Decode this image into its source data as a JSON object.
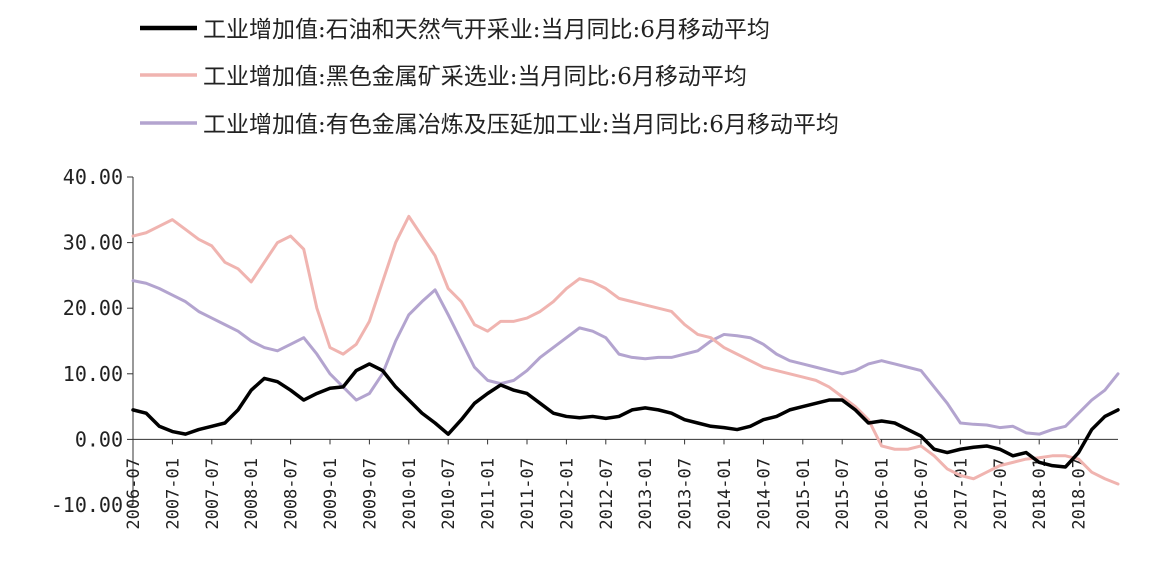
{
  "chart_data": {
    "type": "line",
    "title": "",
    "xlabel": "",
    "ylabel": "",
    "ylim": [
      -10,
      40
    ],
    "y_ticks": [
      "40.00",
      "30.00",
      "20.00",
      "10.00",
      "0.00",
      "-10.00"
    ],
    "x_ticks": [
      "2006-07",
      "2007-01",
      "2007-07",
      "2008-01",
      "2008-07",
      "2009-01",
      "2009-07",
      "2010-01",
      "2010-07",
      "2011-01",
      "2011-07",
      "2012-01",
      "2012-07",
      "2013-01",
      "2013-07",
      "2014-01",
      "2014-07",
      "2015-01",
      "2015-07",
      "2016-01",
      "2016-07",
      "2017-01",
      "2017-07",
      "2018-01",
      "2018-07"
    ],
    "grid": false,
    "legend_position": "top-left",
    "series": [
      {
        "name": "工业增加值:石油和天然气开采业:当月同比:6月移动平均",
        "color": "#000000",
        "points": [
          [
            "2006-07",
            4.5
          ],
          [
            "2006-09",
            4.0
          ],
          [
            "2006-11",
            2.0
          ],
          [
            "2007-01",
            1.2
          ],
          [
            "2007-03",
            0.8
          ],
          [
            "2007-05",
            1.5
          ],
          [
            "2007-07",
            2.0
          ],
          [
            "2007-09",
            2.5
          ],
          [
            "2007-11",
            4.5
          ],
          [
            "2008-01",
            7.5
          ],
          [
            "2008-03",
            9.3
          ],
          [
            "2008-05",
            8.8
          ],
          [
            "2008-07",
            7.5
          ],
          [
            "2008-09",
            6.0
          ],
          [
            "2008-11",
            7.0
          ],
          [
            "2009-01",
            7.8
          ],
          [
            "2009-03",
            8.0
          ],
          [
            "2009-05",
            10.5
          ],
          [
            "2009-07",
            11.5
          ],
          [
            "2009-09",
            10.5
          ],
          [
            "2009-11",
            8.0
          ],
          [
            "2010-01",
            6.0
          ],
          [
            "2010-03",
            4.0
          ],
          [
            "2010-05",
            2.5
          ],
          [
            "2010-07",
            0.8
          ],
          [
            "2010-09",
            3.0
          ],
          [
            "2010-11",
            5.5
          ],
          [
            "2011-01",
            7.0
          ],
          [
            "2011-03",
            8.3
          ],
          [
            "2011-05",
            7.5
          ],
          [
            "2011-07",
            7.0
          ],
          [
            "2011-09",
            5.5
          ],
          [
            "2011-11",
            4.0
          ],
          [
            "2012-01",
            3.5
          ],
          [
            "2012-03",
            3.3
          ],
          [
            "2012-05",
            3.5
          ],
          [
            "2012-07",
            3.2
          ],
          [
            "2012-09",
            3.5
          ],
          [
            "2012-11",
            4.5
          ],
          [
            "2013-01",
            4.8
          ],
          [
            "2013-03",
            4.5
          ],
          [
            "2013-05",
            4.0
          ],
          [
            "2013-07",
            3.0
          ],
          [
            "2013-09",
            2.5
          ],
          [
            "2013-11",
            2.0
          ],
          [
            "2014-01",
            1.8
          ],
          [
            "2014-03",
            1.5
          ],
          [
            "2014-05",
            2.0
          ],
          [
            "2014-07",
            3.0
          ],
          [
            "2014-09",
            3.5
          ],
          [
            "2014-11",
            4.5
          ],
          [
            "2015-01",
            5.0
          ],
          [
            "2015-03",
            5.5
          ],
          [
            "2015-05",
            6.0
          ],
          [
            "2015-07",
            6.0
          ],
          [
            "2015-09",
            4.5
          ],
          [
            "2015-11",
            2.5
          ],
          [
            "2016-01",
            2.8
          ],
          [
            "2016-03",
            2.5
          ],
          [
            "2016-05",
            1.5
          ],
          [
            "2016-07",
            0.5
          ],
          [
            "2016-09",
            -1.5
          ],
          [
            "2016-11",
            -2.0
          ],
          [
            "2017-01",
            -1.5
          ],
          [
            "2017-03",
            -1.2
          ],
          [
            "2017-05",
            -1.0
          ],
          [
            "2017-07",
            -1.5
          ],
          [
            "2017-09",
            -2.5
          ],
          [
            "2017-11",
            -2.0
          ],
          [
            "2018-01",
            -3.5
          ],
          [
            "2018-03",
            -4.0
          ],
          [
            "2018-05",
            -4.2
          ],
          [
            "2018-07",
            -2.0
          ],
          [
            "2018-09",
            1.5
          ],
          [
            "2018-11",
            3.5
          ],
          [
            "2019-01",
            4.5
          ]
        ]
      },
      {
        "name": "工业增加值:黑色金属矿采选业:当月同比:6月移动平均",
        "color": "#f0b4b0",
        "points": [
          [
            "2006-07",
            31.0
          ],
          [
            "2006-09",
            31.5
          ],
          [
            "2006-11",
            32.5
          ],
          [
            "2007-01",
            33.5
          ],
          [
            "2007-03",
            32.0
          ],
          [
            "2007-05",
            30.5
          ],
          [
            "2007-07",
            29.5
          ],
          [
            "2007-09",
            27.0
          ],
          [
            "2007-11",
            26.0
          ],
          [
            "2008-01",
            24.0
          ],
          [
            "2008-03",
            27.0
          ],
          [
            "2008-05",
            30.0
          ],
          [
            "2008-07",
            31.0
          ],
          [
            "2008-09",
            29.0
          ],
          [
            "2008-11",
            20.0
          ],
          [
            "2009-01",
            14.0
          ],
          [
            "2009-03",
            13.0
          ],
          [
            "2009-05",
            14.5
          ],
          [
            "2009-07",
            18.0
          ],
          [
            "2009-09",
            24.0
          ],
          [
            "2009-11",
            30.0
          ],
          [
            "2010-01",
            34.0
          ],
          [
            "2010-03",
            31.0
          ],
          [
            "2010-05",
            28.0
          ],
          [
            "2010-07",
            23.0
          ],
          [
            "2010-09",
            21.0
          ],
          [
            "2010-11",
            17.5
          ],
          [
            "2011-01",
            16.5
          ],
          [
            "2011-03",
            18.0
          ],
          [
            "2011-05",
            18.0
          ],
          [
            "2011-07",
            18.5
          ],
          [
            "2011-09",
            19.5
          ],
          [
            "2011-11",
            21.0
          ],
          [
            "2012-01",
            23.0
          ],
          [
            "2012-03",
            24.5
          ],
          [
            "2012-05",
            24.0
          ],
          [
            "2012-07",
            23.0
          ],
          [
            "2012-09",
            21.5
          ],
          [
            "2012-11",
            21.0
          ],
          [
            "2013-01",
            20.5
          ],
          [
            "2013-03",
            20.0
          ],
          [
            "2013-05",
            19.5
          ],
          [
            "2013-07",
            17.5
          ],
          [
            "2013-09",
            16.0
          ],
          [
            "2013-11",
            15.5
          ],
          [
            "2014-01",
            14.0
          ],
          [
            "2014-03",
            13.0
          ],
          [
            "2014-05",
            12.0
          ],
          [
            "2014-07",
            11.0
          ],
          [
            "2014-09",
            10.5
          ],
          [
            "2014-11",
            10.0
          ],
          [
            "2015-01",
            9.5
          ],
          [
            "2015-03",
            9.0
          ],
          [
            "2015-05",
            8.0
          ],
          [
            "2015-07",
            6.5
          ],
          [
            "2015-09",
            5.0
          ],
          [
            "2015-11",
            3.0
          ],
          [
            "2016-01",
            -1.0
          ],
          [
            "2016-03",
            -1.5
          ],
          [
            "2016-05",
            -1.5
          ],
          [
            "2016-07",
            -1.0
          ],
          [
            "2016-09",
            -2.5
          ],
          [
            "2016-11",
            -4.5
          ],
          [
            "2017-01",
            -5.5
          ],
          [
            "2017-03",
            -6.0
          ],
          [
            "2017-05",
            -5.0
          ],
          [
            "2017-07",
            -4.0
          ],
          [
            "2017-09",
            -3.5
          ],
          [
            "2017-11",
            -3.0
          ],
          [
            "2018-01",
            -2.8
          ],
          [
            "2018-03",
            -2.5
          ],
          [
            "2018-05",
            -2.5
          ],
          [
            "2018-07",
            -3.0
          ],
          [
            "2018-09",
            -5.0
          ],
          [
            "2018-11",
            -6.0
          ],
          [
            "2019-01",
            -6.8
          ]
        ]
      },
      {
        "name": "工业增加值:有色金属冶炼及压延加工业:当月同比:6月移动平均",
        "color": "#b3a4cf",
        "points": [
          [
            "2006-07",
            24.2
          ],
          [
            "2006-09",
            23.8
          ],
          [
            "2006-11",
            23.0
          ],
          [
            "2007-01",
            22.0
          ],
          [
            "2007-03",
            21.0
          ],
          [
            "2007-05",
            19.5
          ],
          [
            "2007-07",
            18.5
          ],
          [
            "2007-09",
            17.5
          ],
          [
            "2007-11",
            16.5
          ],
          [
            "2008-01",
            15.0
          ],
          [
            "2008-03",
            14.0
          ],
          [
            "2008-05",
            13.5
          ],
          [
            "2008-07",
            14.5
          ],
          [
            "2008-09",
            15.5
          ],
          [
            "2008-11",
            13.0
          ],
          [
            "2009-01",
            10.0
          ],
          [
            "2009-03",
            8.0
          ],
          [
            "2009-05",
            6.0
          ],
          [
            "2009-07",
            7.0
          ],
          [
            "2009-09",
            10.0
          ],
          [
            "2009-11",
            15.0
          ],
          [
            "2010-01",
            19.0
          ],
          [
            "2010-03",
            21.0
          ],
          [
            "2010-05",
            22.8
          ],
          [
            "2010-07",
            19.0
          ],
          [
            "2010-09",
            15.0
          ],
          [
            "2010-11",
            11.0
          ],
          [
            "2011-01",
            9.0
          ],
          [
            "2011-03",
            8.5
          ],
          [
            "2011-05",
            9.0
          ],
          [
            "2011-07",
            10.5
          ],
          [
            "2011-09",
            12.5
          ],
          [
            "2011-11",
            14.0
          ],
          [
            "2012-01",
            15.5
          ],
          [
            "2012-03",
            17.0
          ],
          [
            "2012-05",
            16.5
          ],
          [
            "2012-07",
            15.5
          ],
          [
            "2012-09",
            13.0
          ],
          [
            "2012-11",
            12.5
          ],
          [
            "2013-01",
            12.3
          ],
          [
            "2013-03",
            12.5
          ],
          [
            "2013-05",
            12.5
          ],
          [
            "2013-07",
            13.0
          ],
          [
            "2013-09",
            13.5
          ],
          [
            "2013-11",
            15.0
          ],
          [
            "2014-01",
            16.0
          ],
          [
            "2014-03",
            15.8
          ],
          [
            "2014-05",
            15.5
          ],
          [
            "2014-07",
            14.5
          ],
          [
            "2014-09",
            13.0
          ],
          [
            "2014-11",
            12.0
          ],
          [
            "2015-01",
            11.5
          ],
          [
            "2015-03",
            11.0
          ],
          [
            "2015-05",
            10.5
          ],
          [
            "2015-07",
            10.0
          ],
          [
            "2015-09",
            10.5
          ],
          [
            "2015-11",
            11.5
          ],
          [
            "2016-01",
            12.0
          ],
          [
            "2016-03",
            11.5
          ],
          [
            "2016-05",
            11.0
          ],
          [
            "2016-07",
            10.5
          ],
          [
            "2016-09",
            8.0
          ],
          [
            "2016-11",
            5.5
          ],
          [
            "2017-01",
            2.5
          ],
          [
            "2017-03",
            2.3
          ],
          [
            "2017-05",
            2.2
          ],
          [
            "2017-07",
            1.8
          ],
          [
            "2017-09",
            2.0
          ],
          [
            "2017-11",
            1.0
          ],
          [
            "2018-01",
            0.8
          ],
          [
            "2018-03",
            1.5
          ],
          [
            "2018-05",
            2.0
          ],
          [
            "2018-07",
            4.0
          ],
          [
            "2018-09",
            6.0
          ],
          [
            "2018-11",
            7.5
          ],
          [
            "2019-01",
            10.0
          ]
        ]
      }
    ]
  }
}
